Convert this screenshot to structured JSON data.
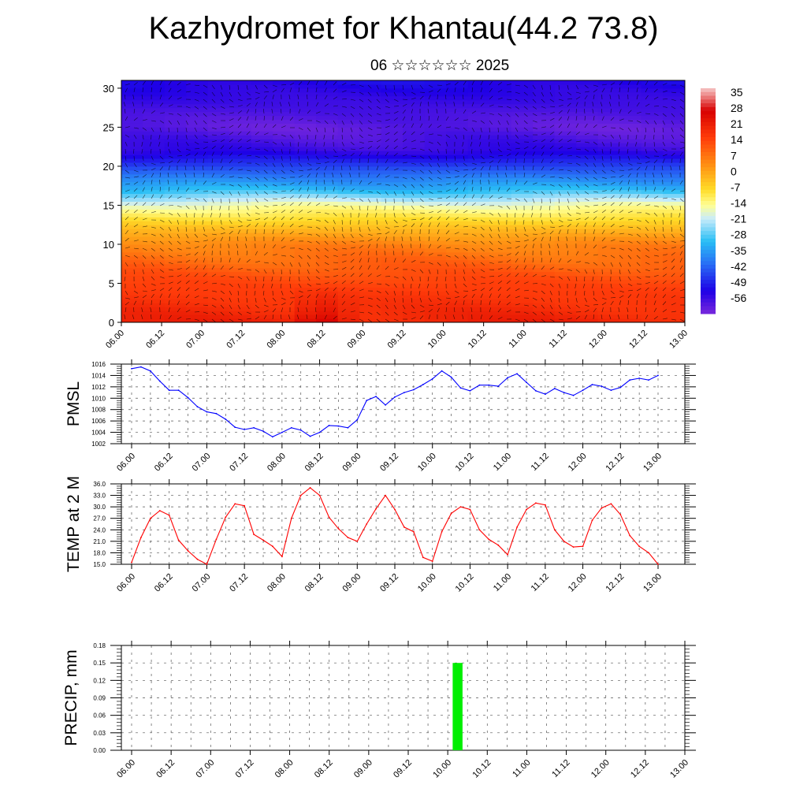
{
  "title": "Kazhydromet for Khantau(44.2 73.8)",
  "subtitle": "06 ☆☆☆☆☆☆ 2025",
  "colors": {
    "pmsl_line": "#0000ff",
    "temp_line": "#ff0000",
    "precip_bar": "#00ee00",
    "grid": "#555555"
  },
  "chart_data": [
    {
      "id": "cross-section",
      "type": "heatmap",
      "title": "",
      "ylim": [
        0,
        31
      ],
      "yticks": [
        "0",
        "5",
        "10",
        "15",
        "20",
        "25",
        "30"
      ],
      "xticks": [
        "06.00",
        "06.12",
        "07.00",
        "07.12",
        "08.00",
        "08.12",
        "09.00",
        "09.12",
        "10.00",
        "10.12",
        "11.00",
        "11.12",
        "12.00",
        "12.12",
        "13.00"
      ],
      "levels": [
        0,
        5,
        10,
        12,
        15,
        17,
        20,
        22,
        25,
        28,
        31
      ],
      "profile": [
        24,
        18,
        8,
        0,
        -14,
        -30,
        -45,
        -55,
        -60,
        -56,
        -52
      ],
      "warm_anomaly": {
        "x_range": [
          "08.00",
          "09.00"
        ],
        "top_level": 5,
        "delta": 10
      },
      "colorbar": {
        "labels": [
          "35",
          "28",
          "21",
          "14",
          "7",
          "0",
          "-7",
          "-14",
          "-21",
          "-28",
          "-35",
          "-42",
          "-49",
          "-56"
        ],
        "range": [
          -63,
          42
        ]
      }
    },
    {
      "id": "pmsl",
      "type": "line",
      "ylabel": "PMSL",
      "ylim": [
        1002,
        1016
      ],
      "yticks": [
        "1002",
        "1004",
        "1006",
        "1008",
        "1010",
        "1012",
        "1014",
        "1016"
      ],
      "xticks": [
        "06.00",
        "06.12",
        "07.00",
        "07.12",
        "08.00",
        "08.12",
        "09.00",
        "09.12",
        "10.00",
        "10.12",
        "11.00",
        "11.12",
        "12.00",
        "12.12",
        "13.00"
      ],
      "series": [
        {
          "values": [
            1015.2,
            1015.5,
            1014.8,
            1013.0,
            1011.4,
            1011.4,
            1010.1,
            1008.5,
            1007.6,
            1007.3,
            1006.3,
            1004.9,
            1004.5,
            1004.8,
            1004.2,
            1003.2,
            1004.0,
            1004.8,
            1004.4,
            1003.3,
            1004.0,
            1005.2,
            1005.1,
            1004.8,
            1006.2,
            1009.6,
            1010.3,
            1008.8,
            1010.2,
            1011.0,
            1011.5,
            1012.4,
            1013.4,
            1014.8,
            1013.7,
            1011.8,
            1011.3,
            1012.3,
            1012.3,
            1012.1,
            1013.6,
            1014.3,
            1012.8,
            1011.3,
            1010.7,
            1011.7,
            1011.0,
            1010.5,
            1011.4,
            1012.4,
            1012.1,
            1011.4,
            1011.9,
            1013.2,
            1013.5,
            1013.2,
            1014.0
          ]
        }
      ]
    },
    {
      "id": "temp",
      "type": "line",
      "ylabel": "TEMP at 2 M",
      "ylim": [
        15,
        36
      ],
      "yticks": [
        "15.0",
        "18.0",
        "21.0",
        "24.0",
        "27.0",
        "30.0",
        "33.0",
        "36.0"
      ],
      "xticks": [
        "06.00",
        "06.12",
        "07.00",
        "07.12",
        "08.00",
        "08.12",
        "09.00",
        "09.12",
        "10.00",
        "10.12",
        "11.00",
        "11.12",
        "12.00",
        "12.12",
        "13.00"
      ],
      "series": [
        {
          "values": [
            15.5,
            22.0,
            27.0,
            29.0,
            27.8,
            21.3,
            18.5,
            16.3,
            15.0,
            21.5,
            27.3,
            30.8,
            30.3,
            22.8,
            21.3,
            19.7,
            17.0,
            27.0,
            33.0,
            35.0,
            33.0,
            27.3,
            24.3,
            22.0,
            21.0,
            25.5,
            29.5,
            33.0,
            29.3,
            24.7,
            23.5,
            16.8,
            15.8,
            23.5,
            28.3,
            30.0,
            29.3,
            24.0,
            21.5,
            20.0,
            17.5,
            24.7,
            29.3,
            31.0,
            30.5,
            24.0,
            21.0,
            19.5,
            19.7,
            26.5,
            29.7,
            30.8,
            28.0,
            22.5,
            19.7,
            18.0,
            15.0
          ]
        }
      ]
    },
    {
      "id": "precip",
      "type": "bar",
      "ylabel": "PRECIP, mm",
      "ylim": [
        0,
        0.18
      ],
      "yticks": [
        "0.00",
        "0.03",
        "0.06",
        "0.09",
        "0.12",
        "0.15",
        "0.18"
      ],
      "xticks": [
        "06.00",
        "06.12",
        "07.00",
        "07.12",
        "08.00",
        "08.12",
        "09.00",
        "09.12",
        "10.00",
        "10.12",
        "11.00",
        "11.12",
        "12.00",
        "12.12",
        "13.00"
      ],
      "bars": [
        {
          "x_step": 32.5,
          "width_steps": 1,
          "value": 0.15
        }
      ]
    }
  ]
}
